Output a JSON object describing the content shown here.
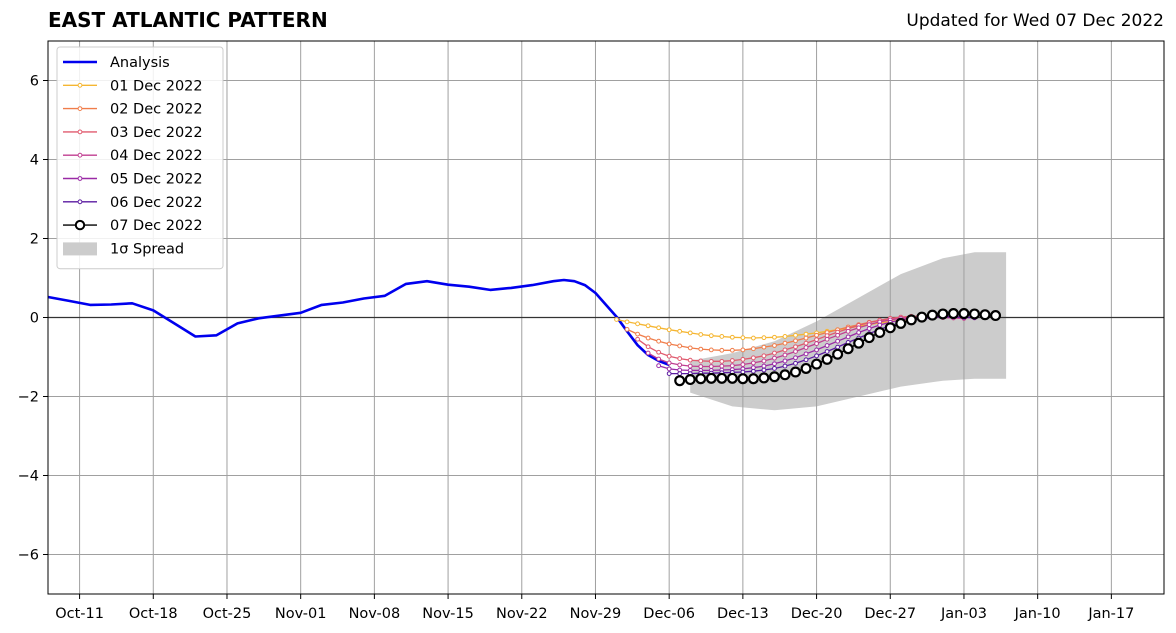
{
  "chart_data": {
    "type": "line",
    "title": "EAST ATLANTIC PATTERN",
    "subtitle": "Updated for Wed 07 Dec 2022",
    "xlabel": "",
    "ylabel": "",
    "xlim": [
      "2022-10-08",
      "2023-01-22"
    ],
    "ylim": [
      -7,
      7
    ],
    "x_ticks": [
      "Oct-11",
      "Oct-18",
      "Oct-25",
      "Nov-01",
      "Nov-08",
      "Nov-15",
      "Nov-22",
      "Nov-29",
      "Dec-06",
      "Dec-13",
      "Dec-20",
      "Dec-27",
      "Jan-03",
      "Jan-10",
      "Jan-17"
    ],
    "x_tick_dates": [
      "2022-10-11",
      "2022-10-18",
      "2022-10-25",
      "2022-11-01",
      "2022-11-08",
      "2022-11-15",
      "2022-11-22",
      "2022-11-29",
      "2022-12-06",
      "2022-12-13",
      "2022-12-20",
      "2022-12-27",
      "2023-01-03",
      "2023-01-10",
      "2023-01-17"
    ],
    "y_ticks": [
      -6,
      -4,
      -2,
      0,
      2,
      4,
      6
    ],
    "grid": true,
    "legend_position": "top-left",
    "spread_label": "1σ Spread",
    "spread": {
      "color": "#cccccc",
      "dates": [
        "2022-12-08",
        "2022-12-12",
        "2022-12-16",
        "2022-12-20",
        "2022-12-24",
        "2022-12-28",
        "2023-01-01",
        "2023-01-04",
        "2023-01-07"
      ],
      "upper": [
        -1.1,
        -0.9,
        -0.6,
        -0.1,
        0.5,
        1.1,
        1.5,
        1.65,
        1.65
      ],
      "lower": [
        -1.9,
        -2.25,
        -2.35,
        -2.25,
        -2.0,
        -1.75,
        -1.6,
        -1.55,
        -1.55
      ]
    },
    "series": [
      {
        "name": "Analysis",
        "color": "#0000ee",
        "style": "line",
        "dates": [
          "2022-10-08",
          "2022-10-10",
          "2022-10-12",
          "2022-10-14",
          "2022-10-16",
          "2022-10-18",
          "2022-10-20",
          "2022-10-22",
          "2022-10-24",
          "2022-10-26",
          "2022-10-28",
          "2022-11-01",
          "2022-11-03",
          "2022-11-05",
          "2022-11-07",
          "2022-11-09",
          "2022-11-11",
          "2022-11-13",
          "2022-11-15",
          "2022-11-17",
          "2022-11-19",
          "2022-11-21",
          "2022-11-23",
          "2022-11-25",
          "2022-11-26",
          "2022-11-27",
          "2022-11-28",
          "2022-11-29",
          "2022-11-30",
          "2022-12-01",
          "2022-12-02",
          "2022-12-03",
          "2022-12-04",
          "2022-12-05",
          "2022-12-06"
        ],
        "values": [
          0.52,
          0.42,
          0.32,
          0.33,
          0.36,
          0.18,
          -0.15,
          -0.48,
          -0.45,
          -0.15,
          -0.02,
          0.12,
          0.32,
          0.38,
          0.48,
          0.55,
          0.85,
          0.92,
          0.83,
          0.78,
          0.7,
          0.75,
          0.82,
          0.92,
          0.95,
          0.92,
          0.82,
          0.62,
          0.32,
          0.02,
          -0.35,
          -0.7,
          -0.95,
          -1.1,
          -1.2
        ]
      },
      {
        "name": "01 Dec 2022",
        "color": "#f5b632",
        "style": "small-dots",
        "start": "2022-12-01",
        "end": "2023-01-03",
        "values": [
          -0.05,
          -0.11,
          -0.16,
          -0.21,
          -0.26,
          -0.31,
          -0.35,
          -0.39,
          -0.43,
          -0.46,
          -0.48,
          -0.5,
          -0.51,
          -0.52,
          -0.51,
          -0.5,
          -0.48,
          -0.45,
          -0.42,
          -0.39,
          -0.35,
          -0.31,
          -0.27,
          -0.22,
          -0.18,
          -0.14,
          -0.1,
          -0.07,
          -0.04,
          -0.02,
          0.0,
          0.01,
          0.02,
          0.02
        ]
      },
      {
        "name": "02 Dec 2022",
        "color": "#f07d4a",
        "style": "small-dots",
        "start": "2022-12-02",
        "end": "2023-01-03",
        "values": [
          -0.3,
          -0.42,
          -0.52,
          -0.6,
          -0.67,
          -0.72,
          -0.77,
          -0.8,
          -0.82,
          -0.83,
          -0.83,
          -0.82,
          -0.79,
          -0.75,
          -0.71,
          -0.65,
          -0.59,
          -0.52,
          -0.45,
          -0.38,
          -0.31,
          -0.24,
          -0.18,
          -0.12,
          -0.07,
          -0.03,
          0.0,
          0.02,
          0.03,
          0.03,
          0.03,
          0.02,
          0.01
        ]
      },
      {
        "name": "03 Dec 2022",
        "color": "#e05a6e",
        "style": "small-dots",
        "start": "2022-12-03",
        "end": "2023-01-03",
        "values": [
          -0.55,
          -0.74,
          -0.88,
          -0.98,
          -1.04,
          -1.08,
          -1.1,
          -1.11,
          -1.11,
          -1.09,
          -1.06,
          -1.02,
          -0.97,
          -0.9,
          -0.82,
          -0.74,
          -0.65,
          -0.56,
          -0.46,
          -0.37,
          -0.28,
          -0.2,
          -0.13,
          -0.07,
          -0.02,
          0.01,
          0.03,
          0.03,
          0.02,
          0.0,
          -0.01,
          -0.02
        ]
      },
      {
        "name": "04 Dec 2022",
        "color": "#c03e91",
        "style": "small-dots",
        "start": "2022-12-04",
        "end": "2023-01-03",
        "values": [
          -0.9,
          -1.05,
          -1.15,
          -1.2,
          -1.23,
          -1.24,
          -1.24,
          -1.23,
          -1.22,
          -1.19,
          -1.15,
          -1.1,
          -1.03,
          -0.95,
          -0.86,
          -0.76,
          -0.66,
          -0.55,
          -0.45,
          -0.35,
          -0.26,
          -0.18,
          -0.11,
          -0.06,
          -0.02,
          0.0,
          0.01,
          0.01,
          0.0,
          -0.01,
          -0.02
        ]
      },
      {
        "name": "05 Dec 2022",
        "color": "#9a2aa6",
        "style": "small-dots",
        "start": "2022-12-05",
        "end": "2023-01-04",
        "values": [
          -1.22,
          -1.3,
          -1.33,
          -1.34,
          -1.34,
          -1.34,
          -1.33,
          -1.32,
          -1.3,
          -1.27,
          -1.23,
          -1.17,
          -1.1,
          -1.02,
          -0.92,
          -0.82,
          -0.71,
          -0.6,
          -0.49,
          -0.38,
          -0.28,
          -0.19,
          -0.12,
          -0.06,
          -0.02,
          0.01,
          0.02,
          0.02,
          0.01,
          0.0,
          -0.01
        ]
      },
      {
        "name": "06 Dec 2022",
        "color": "#5a1aa0",
        "style": "small-dots",
        "start": "2022-12-06",
        "end": "2023-01-04",
        "values": [
          -1.42,
          -1.42,
          -1.42,
          -1.41,
          -1.41,
          -1.4,
          -1.39,
          -1.38,
          -1.36,
          -1.33,
          -1.29,
          -1.23,
          -1.16,
          -1.07,
          -0.97,
          -0.86,
          -0.75,
          -0.63,
          -0.52,
          -0.41,
          -0.3,
          -0.21,
          -0.13,
          -0.07,
          -0.03,
          0.0,
          0.02,
          0.02,
          0.01,
          0.0
        ]
      },
      {
        "name": "07 Dec 2022",
        "color": "#000000",
        "style": "big-circles",
        "start": "2022-12-07",
        "end": "2023-01-06",
        "values": [
          -1.6,
          -1.57,
          -1.55,
          -1.54,
          -1.54,
          -1.54,
          -1.55,
          -1.55,
          -1.53,
          -1.5,
          -1.45,
          -1.38,
          -1.29,
          -1.18,
          -1.06,
          -0.93,
          -0.79,
          -0.65,
          -0.51,
          -0.38,
          -0.26,
          -0.15,
          -0.06,
          0.01,
          0.06,
          0.09,
          0.1,
          0.1,
          0.09,
          0.07,
          0.05
        ]
      }
    ]
  }
}
